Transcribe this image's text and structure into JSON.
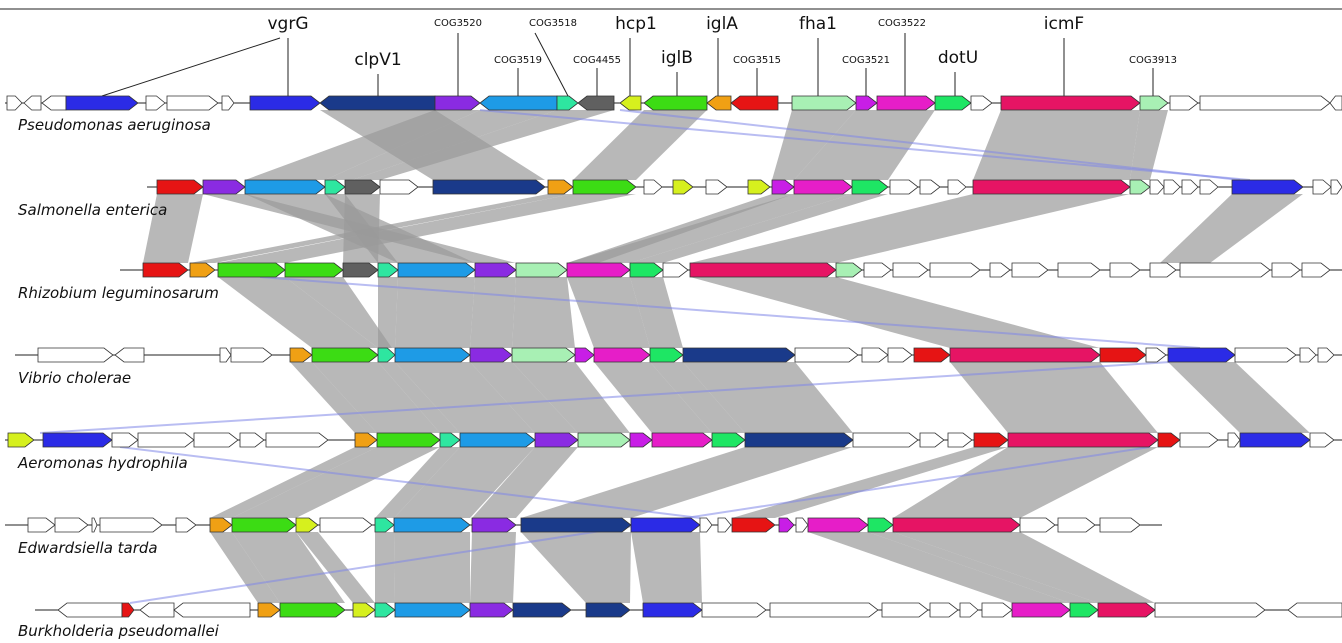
{
  "gene_labels": [
    {
      "key": "vgrG",
      "text": "vgrG",
      "size": "big"
    },
    {
      "key": "clpV1",
      "text": "clpV1",
      "size": "big"
    },
    {
      "key": "COG3520",
      "text": "COG3520",
      "size": "small"
    },
    {
      "key": "COG3518",
      "text": "COG3518",
      "size": "small"
    },
    {
      "key": "COG3519",
      "text": "COG3519",
      "size": "small"
    },
    {
      "key": "COG4455",
      "text": "COG4455",
      "size": "small"
    },
    {
      "key": "hcp1",
      "text": "hcp1",
      "size": "big"
    },
    {
      "key": "iglA",
      "text": "iglA",
      "size": "big"
    },
    {
      "key": "iglB",
      "text": "iglB",
      "size": "big"
    },
    {
      "key": "COG3515",
      "text": "COG3515",
      "size": "small"
    },
    {
      "key": "fha1",
      "text": "fha1",
      "size": "big"
    },
    {
      "key": "COG3522",
      "text": "COG3522",
      "size": "small"
    },
    {
      "key": "COG3521",
      "text": "COG3521",
      "size": "small"
    },
    {
      "key": "dotU",
      "text": "dotU",
      "size": "big"
    },
    {
      "key": "icmF",
      "text": "icmF",
      "size": "big"
    },
    {
      "key": "COG3913",
      "text": "COG3913",
      "size": "small"
    }
  ],
  "organisms": [
    "Pseudomonas aeruginosa",
    "Salmonella enterica",
    "Rhizobium leguminosarum",
    "Vibrio cholerae",
    "Aeromonas hydrophila",
    "Edwardsiella tarda",
    "Burkholderia pseudomallei"
  ],
  "colors": {
    "vgrG": "#2b2be6",
    "clpV1": "#1a3a8a",
    "COG3520": "#8a2be2",
    "COG3519": "#1e9be6",
    "COG3518": "#2ee6a0",
    "COG4455": "#606060",
    "hcp1": "#d6f01e",
    "iglB": "#3cdc14",
    "iglA": "#f0a014",
    "COG3515": "#e61414",
    "fha1": "#a8f0b4",
    "COG3521": "#c81ee6",
    "COG3522": "#e61ec8",
    "dotU": "#1ee664",
    "icmF": "#e61464",
    "COG3913": "#a8f0b4",
    "other": "#ffffff",
    "link": "#9a9a9a"
  }
}
